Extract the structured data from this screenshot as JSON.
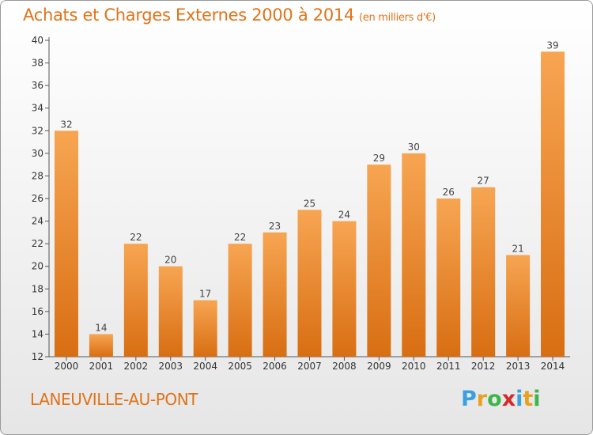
{
  "header": {
    "title": "Achats et Charges Externes 2000 à 2014",
    "unit": "(en milliers d'€)"
  },
  "footer": {
    "commune": "LANEUVILLE-AU-PONT",
    "logo_letters": [
      "P",
      "r",
      "o",
      "x",
      "i",
      "t",
      "i"
    ],
    "logo_colors": [
      "#3aa0e0",
      "#e8a020",
      "#3db54a",
      "#d62b2b",
      "#3aa0e0",
      "#e8a020",
      "#3db54a"
    ]
  },
  "chart_data": {
    "type": "bar",
    "title": "Achats et Charges Externes 2000 à 2014",
    "categories": [
      "2000",
      "2001",
      "2002",
      "2003",
      "2004",
      "2005",
      "2006",
      "2007",
      "2008",
      "2009",
      "2010",
      "2011",
      "2012",
      "2013",
      "2014"
    ],
    "values": [
      32,
      14,
      22,
      20,
      17,
      22,
      23,
      25,
      24,
      29,
      30,
      26,
      27,
      21,
      39
    ],
    "yticks": [
      12,
      14,
      16,
      18,
      20,
      22,
      24,
      26,
      28,
      30,
      32,
      34,
      36,
      38,
      40
    ],
    "ylim": [
      12,
      40
    ],
    "grid": false,
    "bar_color_top": "#f7a552",
    "bar_color_bottom": "#d86e12"
  }
}
